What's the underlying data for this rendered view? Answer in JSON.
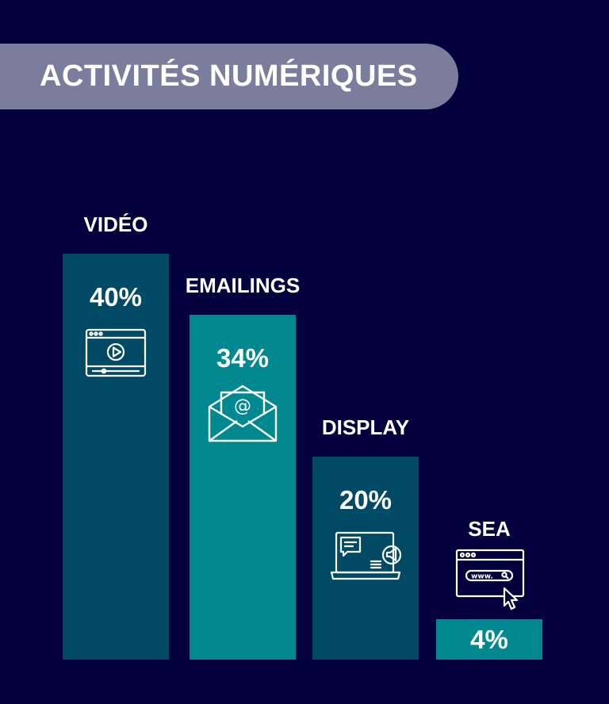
{
  "title": "ACTIVITÉS NUMÉRIQUES",
  "colors": {
    "background": "#02003d",
    "banner": "#7a7e9c",
    "bar_dark": "#004a66",
    "bar_teal": "#008891",
    "text": "#ffffff"
  },
  "chart_data": {
    "type": "bar",
    "title": "ACTIVITÉS NUMÉRIQUES",
    "categories": [
      "VIDÉO",
      "EMAILINGS",
      "DISPLAY",
      "SEA"
    ],
    "values": [
      40,
      34,
      20,
      4
    ],
    "value_labels": [
      "40%",
      "34%",
      "20%",
      "4%"
    ],
    "icons": [
      "video-player-icon",
      "email-envelope-icon",
      "laptop-ad-icon",
      "browser-www-icon"
    ],
    "bar_colors": [
      "#004a66",
      "#008891",
      "#004a66",
      "#008891"
    ],
    "ylim": [
      0,
      40
    ],
    "grid": false,
    "legend": "none"
  }
}
